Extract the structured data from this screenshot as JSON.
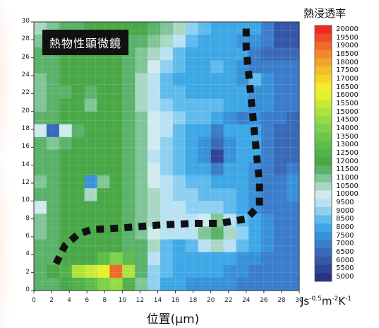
{
  "chart_data": {
    "type": "heatmap",
    "overlay_title": "熱物性顕微鏡",
    "xlabel": "位置(μm)",
    "xlim": [
      0,
      30
    ],
    "ylim": [
      0,
      30
    ],
    "x_ticks": [
      "0",
      "2",
      "4",
      "6",
      "8",
      "10",
      "12",
      "14",
      "16",
      "18",
      "20",
      "22",
      "24",
      "26",
      "28",
      "30"
    ],
    "y_ticks": [
      "0",
      "2",
      "4",
      "6",
      "8",
      "10",
      "12",
      "14",
      "16",
      "18",
      "20",
      "22",
      "24",
      "26",
      "28",
      "30"
    ],
    "legend_title": "熱浸透率",
    "legend_levels": [
      20000,
      19500,
      19000,
      18500,
      18000,
      17500,
      17000,
      16500,
      16000,
      15500,
      15000,
      14500,
      14000,
      13500,
      13000,
      12500,
      12000,
      11500,
      11000,
      10500,
      10000,
      9500,
      9000,
      8500,
      8000,
      7500,
      7000,
      6500,
      6000,
      5500,
      5000
    ],
    "legend_colors": [
      "#ee2a26",
      "#ef4a26",
      "#f06a28",
      "#f18a2a",
      "#f3a52b",
      "#f4bd2a",
      "#f6d52a",
      "#f7ec2b",
      "#e3f02e",
      "#c8ea37",
      "#aee33f",
      "#94da45",
      "#7fd04a",
      "#6cc64d",
      "#5dbc4c",
      "#52b14a",
      "#4aa848",
      "#5bb26a",
      "#80c597",
      "#a8d8c4",
      "#d0ebee",
      "#b8e2f3",
      "#8fd0f1",
      "#5fbbec",
      "#3ea7e6",
      "#3991d8",
      "#3a7dca",
      "#3a69b9",
      "#3557a8",
      "#2f4494",
      "#283383"
    ],
    "units": "Js",
    "units_exp1": "-0.5",
    "units_mid": "m",
    "units_exp2": "-2",
    "units_end": "K",
    "units_exp3": "-1",
    "grid_values": [
      [
        10500,
        11200,
        11500,
        11800,
        12000,
        12000,
        12000,
        12000,
        12000,
        11800,
        11000,
        10500,
        9000,
        8500,
        8000,
        8000,
        8000,
        8000,
        7000,
        6000,
        6000
      ],
      [
        11200,
        11500,
        11800,
        12000,
        12000,
        12000,
        12000,
        11800,
        11500,
        11000,
        10500,
        9500,
        8500,
        8000,
        8000,
        8000,
        7500,
        7500,
        7000,
        6000,
        6000
      ],
      [
        11500,
        11800,
        12000,
        12000,
        12000,
        12000,
        12000,
        11800,
        11000,
        10500,
        9500,
        8500,
        8000,
        8000,
        8000,
        8000,
        8000,
        7000,
        6500,
        6500,
        6500
      ],
      [
        11500,
        11800,
        12000,
        12000,
        12000,
        12000,
        12000,
        11800,
        11000,
        10000,
        9000,
        8500,
        8000,
        8000,
        8500,
        8000,
        7500,
        7000,
        7000,
        7000,
        7000
      ],
      [
        11000,
        11500,
        12000,
        12000,
        12000,
        12000,
        12000,
        11500,
        10500,
        9500,
        8500,
        8000,
        8000,
        8000,
        8000,
        8000,
        7500,
        8500,
        7500,
        7000,
        7000
      ],
      [
        11000,
        11500,
        11800,
        12000,
        11500,
        12000,
        12000,
        11500,
        10500,
        9500,
        8500,
        8500,
        8000,
        8000,
        8000,
        8000,
        8000,
        7500,
        7500,
        7000,
        7000
      ],
      [
        11000,
        11500,
        12000,
        12000,
        11000,
        12000,
        12000,
        11500,
        10500,
        9500,
        9000,
        8500,
        8500,
        8500,
        8500,
        8000,
        8000,
        7500,
        7500,
        7000,
        7000
      ],
      [
        11500,
        11800,
        12000,
        12000,
        12000,
        12000,
        12000,
        11800,
        11000,
        10000,
        9500,
        9000,
        8500,
        8500,
        8000,
        7500,
        7000,
        7500,
        7000,
        7000,
        6500
      ],
      [
        10000,
        6500,
        10000,
        11500,
        12000,
        12000,
        12000,
        11800,
        11000,
        10000,
        9500,
        8500,
        8000,
        8000,
        7000,
        8000,
        8000,
        8000,
        7000,
        6500,
        6500
      ],
      [
        11500,
        11000,
        11500,
        12000,
        12000,
        12000,
        12000,
        11800,
        11000,
        10000,
        9000,
        8500,
        8000,
        7500,
        6500,
        7500,
        8000,
        8000,
        7000,
        6500,
        6500
      ],
      [
        11500,
        11500,
        12000,
        12000,
        12000,
        12000,
        12000,
        11800,
        11000,
        9500,
        9000,
        8500,
        8000,
        7500,
        5500,
        7500,
        8000,
        8000,
        7000,
        6500,
        6500
      ],
      [
        11500,
        11500,
        12000,
        12000,
        12000,
        12000,
        12000,
        11800,
        11000,
        10000,
        9000,
        8500,
        8000,
        8000,
        7000,
        8000,
        8000,
        7500,
        7000,
        6500,
        7000
      ],
      [
        11000,
        11500,
        12000,
        12000,
        7500,
        11000,
        12000,
        11800,
        11000,
        10000,
        9500,
        9000,
        8500,
        8500,
        8000,
        8000,
        8000,
        7500,
        7000,
        7000,
        7500
      ],
      [
        11500,
        11800,
        12000,
        12000,
        10500,
        12000,
        12000,
        11800,
        11000,
        10500,
        9500,
        9000,
        9000,
        8500,
        8500,
        8500,
        8000,
        7500,
        7000,
        7000,
        7500
      ],
      [
        10000,
        11500,
        12000,
        12000,
        12000,
        12000,
        12000,
        11800,
        11000,
        10500,
        9500,
        9500,
        9000,
        9000,
        9000,
        8500,
        8000,
        7500,
        7000,
        7000,
        7000
      ],
      [
        11000,
        11800,
        12000,
        12000,
        12000,
        12000,
        12000,
        11800,
        11000,
        10500,
        9500,
        9500,
        9500,
        10000,
        11000,
        9500,
        8500,
        8000,
        7500,
        7000,
        7000
      ],
      [
        11000,
        11800,
        12000,
        12000,
        12000,
        12000,
        12000,
        11800,
        11000,
        10000,
        9500,
        9500,
        9500,
        11000,
        11500,
        10500,
        9000,
        8000,
        7500,
        7000,
        7000
      ],
      [
        11500,
        11800,
        12000,
        12000,
        12000,
        12000,
        12000,
        11800,
        11500,
        10500,
        8500,
        8000,
        8500,
        9500,
        10500,
        9500,
        8500,
        8000,
        7500,
        7000,
        7000
      ],
      [
        11500,
        11800,
        12000,
        12000,
        12000,
        13000,
        14000,
        13000,
        11800,
        9500,
        8500,
        8000,
        8000,
        8000,
        8000,
        8000,
        7500,
        7500,
        7000,
        7000,
        7000
      ],
      [
        11500,
        12000,
        12500,
        15000,
        15500,
        16000,
        19000,
        15000,
        11800,
        9000,
        8500,
        8000,
        8000,
        8000,
        8000,
        7500,
        7500,
        7000,
        7000,
        7000,
        7000
      ],
      [
        11500,
        11800,
        12000,
        12500,
        13000,
        14000,
        14500,
        12500,
        11000,
        9000,
        8000,
        8000,
        7500,
        7500,
        7500,
        7500,
        7000,
        7000,
        7000,
        7000,
        7000
      ]
    ],
    "path_xy": [
      [
        2.5,
        3
      ],
      [
        3.5,
        5
      ],
      [
        5,
        6.3
      ],
      [
        6.5,
        6.8
      ],
      [
        10,
        7
      ],
      [
        14,
        7.3
      ],
      [
        18,
        7.5
      ],
      [
        21,
        7.5
      ],
      [
        24,
        8
      ],
      [
        25.5,
        9.5
      ],
      [
        25.5,
        12
      ],
      [
        25,
        17
      ],
      [
        24.5,
        22
      ],
      [
        24,
        27
      ],
      [
        24,
        30.5
      ]
    ]
  }
}
